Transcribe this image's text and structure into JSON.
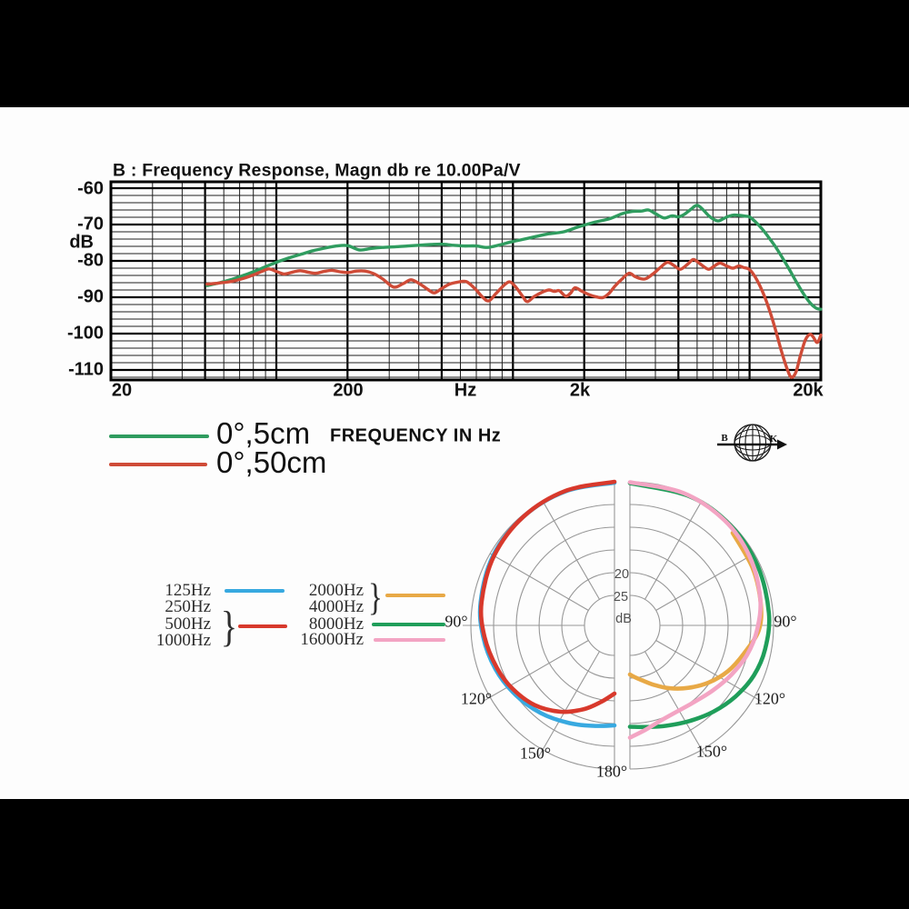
{
  "letterbox": {
    "color": "#000000",
    "top_height": 118,
    "bottom_start": 879
  },
  "colors": {
    "fr_green": "#2f9c5f",
    "fr_red": "#cf4b37",
    "polar_blue": "#38a9e0",
    "polar_red": "#d8392c",
    "polar_orange": "#e8a946",
    "polar_green": "#1f9e5a",
    "polar_pink": "#f3a4c3",
    "polar_grid": "#979797",
    "fr_grid_minor": "#1f1f1f",
    "fr_grid_major": "#000000"
  },
  "fr_legend": {
    "freq_axis_label": "FREQUENCY IN Hz"
  },
  "bk_logo": {
    "letter_left": "B",
    "letter_right": "K"
  },
  "polar_labels": {
    "a90": "90°",
    "a120": "120°",
    "a150": "150°",
    "a180": "180°",
    "ring20": "20",
    "ring25": "25",
    "unit": "dB"
  },
  "polar_legend": {
    "left_rows": [
      "125Hz",
      "250Hz",
      "500Hz",
      "1000Hz"
    ],
    "right_rows": [
      "2000Hz",
      "4000Hz",
      "8000Hz",
      "16000Hz"
    ],
    "brace_char": "}"
  },
  "chart_data": [
    {
      "type": "line",
      "title": "B : Frequency Response, Magn db re 10.00Pa/V",
      "x_scale": "log",
      "x_range_hz": [
        20,
        20000
      ],
      "x_ticks": [
        {
          "label": "20",
          "hz": 20
        },
        {
          "label": "200",
          "hz": 200
        },
        {
          "label": "Hz",
          "hz": 620
        },
        {
          "label": "2k",
          "hz": 2000
        },
        {
          "label": "20k",
          "hz": 20000
        }
      ],
      "y_unit": "dB",
      "y_ticks": [
        {
          "label": "-60",
          "db": -60
        },
        {
          "label": "-70",
          "db": -70
        },
        {
          "label": "-80",
          "db": -80
        },
        {
          "label": "-90",
          "db": -90
        },
        {
          "label": "-100",
          "db": -100
        },
        {
          "label": "-110",
          "db": -110
        }
      ],
      "grid": "log-paper, minor 2 dB / major 10 dB",
      "series": [
        {
          "name": "0°,5cm",
          "color": "#2f9c5f",
          "points": [
            [
              51,
              -86.8
            ],
            [
              57,
              -86.1
            ],
            [
              64,
              -85.2
            ],
            [
              72,
              -84.1
            ],
            [
              80,
              -83.0
            ],
            [
              90,
              -81.6
            ],
            [
              100,
              -80.4
            ],
            [
              113,
              -79.2
            ],
            [
              127,
              -78.2
            ],
            [
              143,
              -77.2
            ],
            [
              160,
              -76.5
            ],
            [
              180,
              -75.9
            ],
            [
              200,
              -75.8
            ],
            [
              225,
              -77.0
            ],
            [
              250,
              -76.6
            ],
            [
              280,
              -76.3
            ],
            [
              320,
              -76.1
            ],
            [
              360,
              -75.9
            ],
            [
              400,
              -75.7
            ],
            [
              450,
              -75.5
            ],
            [
              500,
              -75.4
            ],
            [
              560,
              -75.7
            ],
            [
              620,
              -75.9
            ],
            [
              700,
              -75.9
            ],
            [
              780,
              -76.3
            ],
            [
              880,
              -75.6
            ],
            [
              980,
              -74.8
            ],
            [
              1100,
              -74.1
            ],
            [
              1250,
              -73.3
            ],
            [
              1400,
              -72.6
            ],
            [
              1640,
              -72.0
            ],
            [
              1900,
              -70.6
            ],
            [
              2200,
              -69.4
            ],
            [
              2560,
              -68.4
            ],
            [
              2900,
              -67.0
            ],
            [
              3200,
              -66.4
            ],
            [
              3500,
              -66.3
            ],
            [
              3740,
              -66.0
            ],
            [
              4000,
              -67.0
            ],
            [
              4350,
              -68.2
            ],
            [
              4700,
              -67.6
            ],
            [
              5000,
              -67.9
            ],
            [
              5300,
              -67.2
            ],
            [
              5650,
              -65.8
            ],
            [
              6000,
              -64.7
            ],
            [
              6350,
              -65.9
            ],
            [
              6700,
              -67.5
            ],
            [
              7100,
              -68.7
            ],
            [
              7400,
              -69.0
            ],
            [
              7800,
              -68.3
            ],
            [
              8200,
              -67.7
            ],
            [
              8600,
              -67.4
            ],
            [
              9100,
              -67.5
            ],
            [
              9600,
              -67.7
            ],
            [
              10000,
              -67.9
            ],
            [
              10600,
              -69.3
            ],
            [
              11300,
              -71.2
            ],
            [
              12000,
              -73.4
            ],
            [
              12800,
              -75.9
            ],
            [
              13600,
              -78.6
            ],
            [
              14500,
              -81.6
            ],
            [
              15400,
              -84.6
            ],
            [
              16300,
              -87.4
            ],
            [
              17200,
              -89.8
            ],
            [
              18100,
              -91.7
            ],
            [
              19000,
              -92.9
            ],
            [
              19500,
              -93.2
            ],
            [
              20000,
              -93.3
            ]
          ]
        },
        {
          "name": "0°,50cm",
          "color": "#cf4b37",
          "points": [
            [
              51,
              -86.4
            ],
            [
              57,
              -86.1
            ],
            [
              64,
              -85.7
            ],
            [
              71,
              -85.0
            ],
            [
              79,
              -84.0
            ],
            [
              87,
              -82.9
            ],
            [
              93,
              -82.2
            ],
            [
              100,
              -82.9
            ],
            [
              108,
              -83.6
            ],
            [
              117,
              -83.1
            ],
            [
              126,
              -82.7
            ],
            [
              136,
              -83.1
            ],
            [
              147,
              -83.4
            ],
            [
              159,
              -82.9
            ],
            [
              172,
              -82.6
            ],
            [
              186,
              -83.0
            ],
            [
              201,
              -83.2
            ],
            [
              218,
              -82.8
            ],
            [
              237,
              -82.8
            ],
            [
              258,
              -83.5
            ],
            [
              282,
              -85.0
            ],
            [
              313,
              -87.2
            ],
            [
              345,
              -86.2
            ],
            [
              372,
              -85.2
            ],
            [
              410,
              -86.6
            ],
            [
              440,
              -88.0
            ],
            [
              466,
              -88.8
            ],
            [
              500,
              -87.6
            ],
            [
              540,
              -86.4
            ],
            [
              580,
              -85.9
            ],
            [
              634,
              -85.7
            ],
            [
              690,
              -87.6
            ],
            [
              740,
              -89.8
            ],
            [
              790,
              -91.0
            ],
            [
              850,
              -88.9
            ],
            [
              920,
              -86.6
            ],
            [
              975,
              -85.8
            ],
            [
              1040,
              -87.6
            ],
            [
              1100,
              -89.8
            ],
            [
              1150,
              -91.2
            ],
            [
              1230,
              -89.8
            ],
            [
              1330,
              -88.6
            ],
            [
              1420,
              -88.0
            ],
            [
              1500,
              -88.4
            ],
            [
              1570,
              -88.2
            ],
            [
              1670,
              -89.7
            ],
            [
              1750,
              -88.9
            ],
            [
              1830,
              -87.4
            ],
            [
              1950,
              -88.3
            ],
            [
              2100,
              -89.3
            ],
            [
              2250,
              -89.9
            ],
            [
              2400,
              -90.1
            ],
            [
              2550,
              -88.9
            ],
            [
              2700,
              -86.9
            ],
            [
              2900,
              -84.9
            ],
            [
              3100,
              -83.4
            ],
            [
              3300,
              -84.4
            ],
            [
              3600,
              -85.0
            ],
            [
              3900,
              -83.6
            ],
            [
              4200,
              -81.8
            ],
            [
              4500,
              -80.4
            ],
            [
              4800,
              -81.3
            ],
            [
              5100,
              -82.3
            ],
            [
              5500,
              -80.8
            ],
            [
              5800,
              -79.6
            ],
            [
              6200,
              -80.9
            ],
            [
              6700,
              -82.3
            ],
            [
              7100,
              -81.4
            ],
            [
              7500,
              -80.6
            ],
            [
              8000,
              -81.4
            ],
            [
              8500,
              -82.0
            ],
            [
              9000,
              -81.4
            ],
            [
              9400,
              -81.8
            ],
            [
              10000,
              -82.4
            ],
            [
              10600,
              -84.6
            ],
            [
              11300,
              -88.2
            ],
            [
              12000,
              -92.6
            ],
            [
              12800,
              -98.4
            ],
            [
              13600,
              -104.6
            ],
            [
              14400,
              -109.6
            ],
            [
              15000,
              -112.0
            ],
            [
              15700,
              -110.6
            ],
            [
              16400,
              -106.0
            ],
            [
              17200,
              -101.8
            ],
            [
              18000,
              -100.2
            ],
            [
              18600,
              -101.0
            ],
            [
              19200,
              -102.4
            ],
            [
              19600,
              -101.9
            ],
            [
              20000,
              -100.4
            ]
          ]
        }
      ]
    },
    {
      "type": "polar",
      "layout": "split halves, 0° at top, gap down the middle",
      "unit": "dB",
      "rings_db": [
        0,
        -5,
        -10,
        -15,
        -20,
        -25
      ],
      "ring_labels": [
        {
          "label": "20",
          "db": -20
        },
        {
          "label": "25",
          "db": -25
        }
      ],
      "angle_tick_labels": [
        "90°",
        "120°",
        "150°",
        "180°"
      ],
      "series": [
        {
          "name": "125Hz",
          "half": "left",
          "color": "#38a9e0",
          "points_deg_db": [
            [
              0,
              0.2
            ],
            [
              20,
              0.2
            ],
            [
              40,
              0.4
            ],
            [
              60,
              0.8
            ],
            [
              80,
              1.7
            ],
            [
              95,
              2.6
            ],
            [
              110,
              3.7
            ],
            [
              125,
              5.0
            ],
            [
              140,
              6.4
            ],
            [
              155,
              7.9
            ],
            [
              168,
              9.0
            ],
            [
              180,
              9.6
            ]
          ]
        },
        {
          "name": "250Hz, 500Hz, 1000Hz",
          "half": "left",
          "color": "#d8392c",
          "points_deg_db": [
            [
              0,
              0.0
            ],
            [
              20,
              0.1
            ],
            [
              40,
              0.4
            ],
            [
              60,
              1.0
            ],
            [
              80,
              1.9
            ],
            [
              95,
              2.9
            ],
            [
              110,
              4.1
            ],
            [
              122,
              5.2
            ],
            [
              135,
              6.8
            ],
            [
              148,
              9.2
            ],
            [
              160,
              12.0
            ],
            [
              170,
              14.5
            ],
            [
              180,
              16.6
            ]
          ]
        },
        {
          "name": "2000Hz, 4000Hz",
          "half": "right",
          "color": "#e8a946",
          "points_deg_db": [
            [
              48,
              1.2
            ],
            [
              65,
              1.8
            ],
            [
              80,
              2.4
            ],
            [
              92,
              3.2
            ],
            [
              104,
              5.8
            ],
            [
              115,
              7.8
            ],
            [
              126,
              10.2
            ],
            [
              137,
              12.8
            ],
            [
              148,
              15.3
            ],
            [
              158,
              17.5
            ],
            [
              168,
              19.3
            ],
            [
              175,
              20.2
            ],
            [
              180,
              20.8
            ]
          ]
        },
        {
          "name": "8000Hz",
          "half": "right",
          "color": "#1f9e5a",
          "points_deg_db": [
            [
              0,
              0.3
            ],
            [
              25,
              0.3
            ],
            [
              45,
              0.4
            ],
            [
              65,
              0.6
            ],
            [
              85,
              0.9
            ],
            [
              100,
              1.4
            ],
            [
              112,
              2.2
            ],
            [
              124,
              3.6
            ],
            [
              136,
              5.2
            ],
            [
              148,
              6.8
            ],
            [
              160,
              8.1
            ],
            [
              170,
              8.9
            ],
            [
              180,
              9.3
            ]
          ]
        },
        {
          "name": "16000Hz",
          "half": "right",
          "color": "#f3a4c3",
          "points_deg_db": [
            [
              0,
              0.1
            ],
            [
              22,
              0.2
            ],
            [
              42,
              0.5
            ],
            [
              60,
              1.2
            ],
            [
              78,
              2.3
            ],
            [
              92,
              3.6
            ],
            [
              104,
              5.0
            ],
            [
              116,
              6.8
            ],
            [
              128,
              8.4
            ],
            [
              140,
              9.6
            ],
            [
              152,
              10.0
            ],
            [
              163,
              9.5
            ],
            [
              172,
              8.3
            ],
            [
              180,
              6.9
            ]
          ]
        }
      ]
    }
  ]
}
